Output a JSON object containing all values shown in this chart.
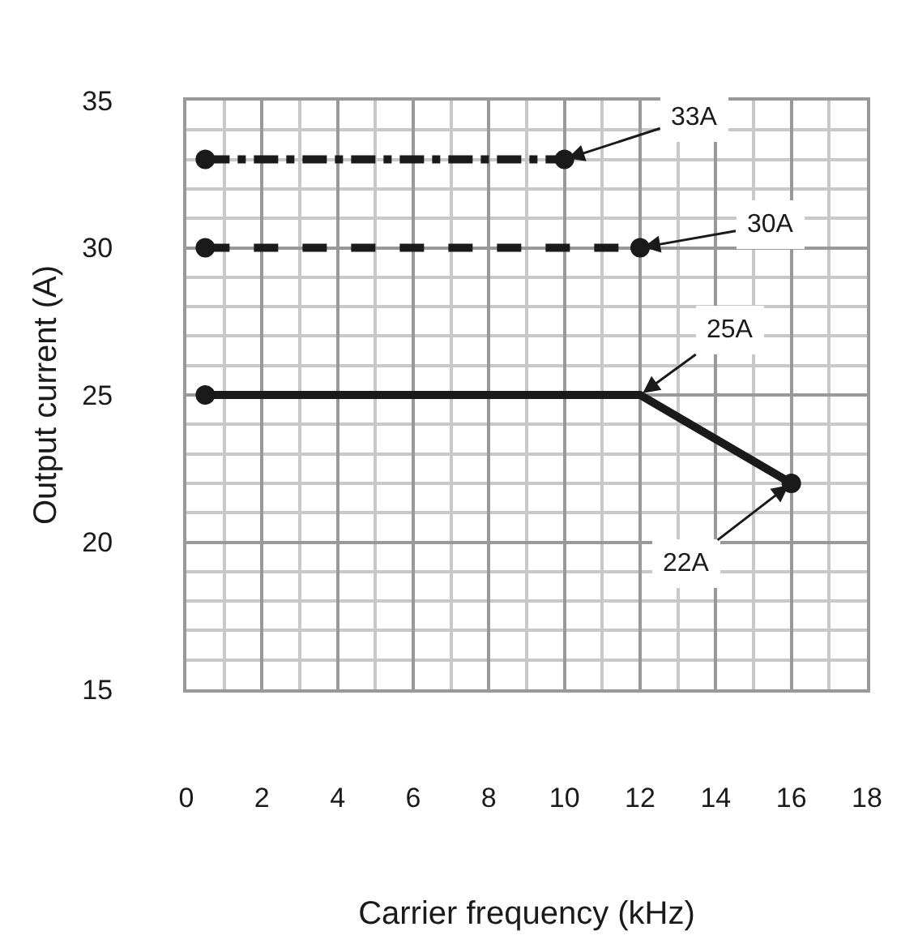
{
  "chart_data": {
    "type": "line",
    "xlabel": "Carrier frequency (kHz)",
    "ylabel": "Output current (A)",
    "xlim": [
      0,
      18
    ],
    "xticks": [
      0,
      2,
      4,
      6,
      8,
      10,
      12,
      14,
      16,
      18
    ],
    "ylim": [
      15,
      35
    ],
    "yticks": [
      15,
      20,
      25,
      30,
      35
    ],
    "grid": true,
    "marker": "circle",
    "series": [
      {
        "color": "#1a1a1a",
        "x": [
          0.5,
          10
        ],
        "values": [
          33,
          33
        ],
        "line_style": "dashdot"
      },
      {
        "color": "#1a1a1a",
        "x": [
          0.5,
          12
        ],
        "values": [
          30,
          30
        ],
        "line_style": "dashed"
      },
      {
        "color": "#1a1a1a",
        "x": [
          0.5,
          12,
          16
        ],
        "values": [
          25,
          25,
          22
        ],
        "line_style": "solid"
      }
    ],
    "annotations": [
      {
        "text": "33A",
        "x": 10,
        "y": 33
      },
      {
        "text": "30A",
        "x": 12,
        "y": 30
      },
      {
        "text": "25A",
        "x": 12,
        "y": 25
      },
      {
        "text": "22A",
        "x": 16,
        "y": 22
      }
    ]
  }
}
